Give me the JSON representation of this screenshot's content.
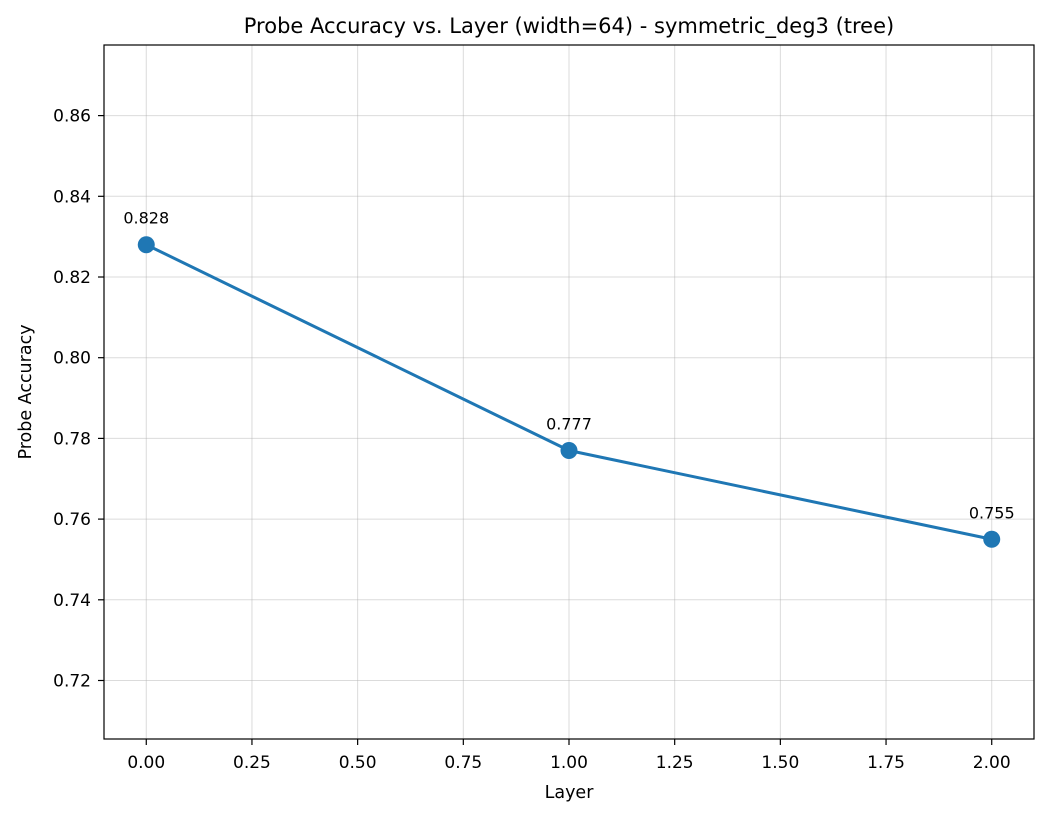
{
  "chart_data": {
    "type": "line",
    "title": "Probe Accuracy vs. Layer (width=64) - symmetric_deg3 (tree)",
    "xlabel": "Layer",
    "ylabel": "Probe Accuracy",
    "xlim": [
      -0.1,
      2.1
    ],
    "ylim": [
      0.7055,
      0.8775
    ],
    "x_ticks": [
      "0.00",
      "0.25",
      "0.50",
      "0.75",
      "1.00",
      "1.25",
      "1.50",
      "1.75",
      "2.00"
    ],
    "y_ticks": [
      "0.72",
      "0.74",
      "0.76",
      "0.78",
      "0.80",
      "0.82",
      "0.84",
      "0.86"
    ],
    "grid": true,
    "series": [
      {
        "color": "#1f77b4",
        "x": [
          0,
          1,
          2
        ],
        "y": [
          0.828,
          0.777,
          0.755
        ],
        "labels": [
          "0.828",
          "0.777",
          "0.755"
        ]
      }
    ]
  }
}
